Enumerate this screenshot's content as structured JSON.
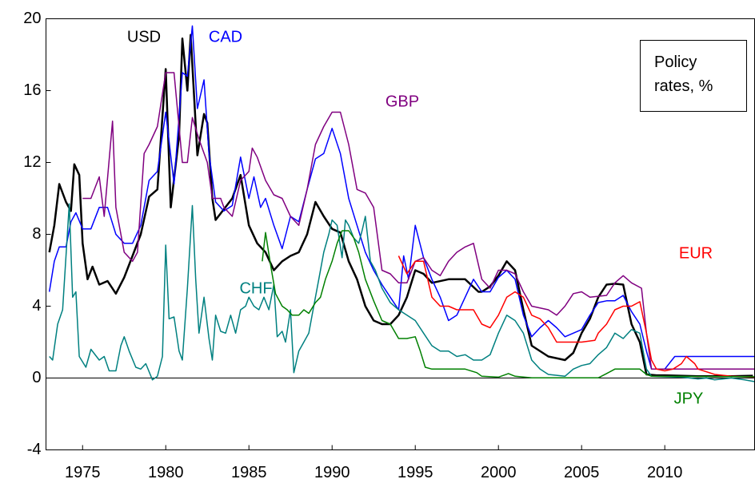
{
  "chart_data": {
    "type": "line",
    "annotation": "Policy rates, %",
    "xlim": [
      1972.8,
      2015.4
    ],
    "xticks": [
      1975,
      1980,
      1985,
      1990,
      1995,
      2000,
      2005,
      2010
    ],
    "ylim": [
      -4,
      20
    ],
    "yticks": [
      -4,
      0,
      4,
      8,
      12,
      16,
      20
    ],
    "grid": false,
    "zero_line": true,
    "series": [
      {
        "name": "USD",
        "color": "#000000",
        "x": [
          1973,
          1973.3,
          1973.6,
          1974,
          1974.3,
          1974.5,
          1974.8,
          1975,
          1975.3,
          1975.6,
          1976,
          1976.5,
          1977,
          1977.5,
          1978,
          1978.5,
          1979,
          1979.5,
          1980,
          1980.3,
          1980.8,
          1981,
          1981.3,
          1981.5,
          1981.9,
          1982.3,
          1982.5,
          1982.8,
          1983,
          1983.5,
          1984,
          1984.5,
          1985,
          1985.5,
          1986,
          1986.5,
          1987,
          1987.5,
          1988,
          1988.5,
          1989,
          1989.5,
          1990,
          1990.5,
          1991,
          1991.5,
          1992,
          1992.5,
          1993,
          1993.5,
          1994,
          1994.5,
          1995,
          1995.5,
          1996,
          1997,
          1998,
          1998.8,
          1999,
          1999.5,
          2000,
          2000.5,
          2001,
          2001.5,
          2002,
          2003,
          2004,
          2004.5,
          2005,
          2005.5,
          2006,
          2006.5,
          2007,
          2007.5,
          2008,
          2008.5,
          2008.9,
          2009.5,
          2010,
          2012,
          2014,
          2015.3
        ],
        "values": [
          7,
          8.5,
          10.8,
          9.8,
          9.3,
          11.9,
          11.3,
          7.5,
          5.5,
          6.2,
          5.2,
          5.4,
          4.7,
          5.6,
          6.8,
          8,
          10.1,
          10.5,
          17.2,
          9.5,
          13.5,
          18.9,
          16,
          19.1,
          12.4,
          14.7,
          14.2,
          10,
          8.8,
          9.4,
          10,
          11.3,
          8.5,
          7.5,
          7,
          6,
          6.5,
          6.8,
          7,
          8,
          9.8,
          9,
          8.3,
          8.1,
          6.5,
          5.5,
          4,
          3.2,
          3,
          3,
          3.5,
          4.5,
          6,
          5.8,
          5.3,
          5.5,
          5.5,
          4.8,
          4.8,
          5.1,
          5.7,
          6.5,
          6,
          3.8,
          1.8,
          1.2,
          1,
          1.4,
          2.5,
          3.3,
          4.5,
          5.2,
          5.25,
          5.2,
          3,
          2,
          0.2,
          0.15,
          0.15,
          0.1,
          0.1,
          0.13
        ]
      },
      {
        "name": "CAD",
        "color": "#0000ff",
        "x": [
          1973,
          1973.3,
          1973.6,
          1974,
          1974.3,
          1974.6,
          1975,
          1975.5,
          1976,
          1976.5,
          1977,
          1977.5,
          1978,
          1978.5,
          1979,
          1979.5,
          1980,
          1980.5,
          1981,
          1981.3,
          1981.6,
          1981.9,
          1982.3,
          1982.6,
          1983,
          1983.5,
          1984,
          1984.5,
          1985,
          1985.3,
          1985.7,
          1986,
          1986.5,
          1987,
          1987.5,
          1988,
          1988.5,
          1989,
          1989.5,
          1990,
          1990.5,
          1991,
          1991.5,
          1992,
          1992.5,
          1993,
          1993.5,
          1994,
          1994.3,
          1994.6,
          1995,
          1995.5,
          1996,
          1996.5,
          1997,
          1997.5,
          1998,
          1998.5,
          1999,
          1999.5,
          2000,
          2000.5,
          2001,
          2001.5,
          2002,
          2002.5,
          2003,
          2003.5,
          2004,
          2004.5,
          2005,
          2005.5,
          2006,
          2006.5,
          2007,
          2007.5,
          2008,
          2008.5,
          2008.9,
          2009.2,
          2010,
          2010.6,
          2015.4
        ],
        "values": [
          4.8,
          6.5,
          7.3,
          7.3,
          8.7,
          9.2,
          8.3,
          8.3,
          9.5,
          9.5,
          8,
          7.5,
          7.5,
          8.5,
          11,
          11.5,
          14.8,
          10.8,
          17,
          16.8,
          19.6,
          15,
          16.6,
          12.5,
          9.8,
          9.3,
          9.6,
          12.3,
          10,
          11.2,
          9.5,
          10,
          8.5,
          7.2,
          9,
          8.7,
          10.5,
          12.2,
          12.5,
          13.9,
          12.5,
          10,
          8.5,
          7,
          6,
          5.2,
          4.5,
          3.8,
          6.8,
          5.5,
          8.5,
          6.7,
          5.5,
          4.5,
          3.2,
          3.5,
          4.5,
          5.5,
          4.8,
          4.8,
          5.6,
          6,
          5.5,
          3.5,
          2.3,
          2.8,
          3.2,
          2.8,
          2.3,
          2.5,
          2.7,
          3.5,
          4.2,
          4.3,
          4.3,
          4.6,
          3.7,
          3,
          1.5,
          0.5,
          0.5,
          1.2,
          1.2
        ]
      },
      {
        "name": "GBP",
        "color": "#800080",
        "x": [
          1975,
          1975.5,
          1976,
          1976.3,
          1976.8,
          1977,
          1977.5,
          1978,
          1978.3,
          1978.7,
          1979,
          1979.5,
          1980,
          1980.5,
          1981,
          1981.3,
          1981.6,
          1982,
          1982.5,
          1982.8,
          1983.3,
          1983.5,
          1984,
          1984.5,
          1985,
          1985.2,
          1985.5,
          1986,
          1986.5,
          1987,
          1987.5,
          1988,
          1988.5,
          1989,
          1989.5,
          1990,
          1990.5,
          1991,
          1991.5,
          1992,
          1992.5,
          1993,
          1993.5,
          1994,
          1994.5,
          1995,
          1995.5,
          1996,
          1996.5,
          1997,
          1997.5,
          1998,
          1998.5,
          1999,
          1999.5,
          2000,
          2000.5,
          2001,
          2001.5,
          2002,
          2003,
          2003.5,
          2004,
          2004.5,
          2005,
          2005.5,
          2006.5,
          2007,
          2007.5,
          2008,
          2008.6,
          2008.9,
          2009.2,
          2015.4
        ],
        "values": [
          10,
          10,
          11.2,
          9,
          14.3,
          9.5,
          7,
          6.5,
          7,
          12.5,
          13,
          14,
          17,
          17,
          12,
          12,
          14.5,
          13.3,
          12,
          10,
          10,
          9.5,
          9,
          11,
          11.5,
          12.8,
          12.3,
          11,
          10.2,
          10,
          9,
          8.5,
          10.5,
          13,
          14,
          14.8,
          14.8,
          13,
          10.5,
          10.3,
          9.5,
          6,
          5.8,
          5.3,
          5.3,
          6.5,
          6.7,
          6,
          5.7,
          6.5,
          7,
          7.3,
          7.5,
          5.5,
          5,
          6,
          6,
          5.8,
          4.8,
          4,
          3.8,
          3.5,
          4,
          4.7,
          4.8,
          4.5,
          4.6,
          5.3,
          5.7,
          5.3,
          5,
          2.5,
          0.5,
          0.5
        ]
      },
      {
        "name": "EUR",
        "color": "#ff0000",
        "x": [
          1994,
          1994.5,
          1995,
          1995.5,
          1996,
          1996.5,
          1997,
          1997.5,
          1998,
          1998.5,
          1999,
          1999.5,
          2000,
          2000.5,
          2001,
          2001.5,
          2002,
          2002.5,
          2003,
          2003.5,
          2004,
          2005,
          2005.8,
          2006,
          2006.5,
          2007,
          2007.5,
          2008,
          2008.5,
          2008.9,
          2009.2,
          2009.5,
          2010,
          2010.5,
          2011,
          2011.3,
          2011.8,
          2012,
          2013,
          2014,
          2015.4
        ],
        "values": [
          6.8,
          5.8,
          6.5,
          6.5,
          4.5,
          4,
          4,
          3.8,
          3.8,
          3.8,
          3,
          2.8,
          3.5,
          4.5,
          4.8,
          4.5,
          3.5,
          3.3,
          2.8,
          2,
          2,
          2,
          2.1,
          2.5,
          3,
          3.8,
          4,
          4,
          4.25,
          2.5,
          1,
          0.5,
          0.4,
          0.5,
          0.8,
          1.2,
          0.8,
          0.5,
          0.2,
          0.1,
          0.05
        ]
      },
      {
        "name": "CHF",
        "color": "#008080",
        "x": [
          1973,
          1973.2,
          1973.5,
          1973.8,
          1974.2,
          1974.4,
          1974.6,
          1974.8,
          1975.2,
          1975.5,
          1976,
          1976.3,
          1976.6,
          1977,
          1977.3,
          1977.5,
          1977.8,
          1978.2,
          1978.5,
          1978.8,
          1979.2,
          1979.5,
          1979.8,
          1980,
          1980.2,
          1980.5,
          1980.8,
          1981,
          1981.3,
          1981.6,
          1981.8,
          1982,
          1982.3,
          1982.6,
          1982.8,
          1983,
          1983.3,
          1983.6,
          1983.9,
          1984.2,
          1984.5,
          1984.8,
          1985,
          1985.3,
          1985.6,
          1985.9,
          1986.2,
          1986.5,
          1986.7,
          1987,
          1987.2,
          1987.5,
          1987.7,
          1988,
          1988.3,
          1988.6,
          1988.9,
          1989.2,
          1989.5,
          1989.8,
          1990,
          1990.3,
          1990.6,
          1990.8,
          1991,
          1991.3,
          1991.6,
          1991.8,
          1992,
          1992.3,
          1992.6,
          1993,
          1993.5,
          1994,
          1994.5,
          1995,
          1995.5,
          1996,
          1996.5,
          1997,
          1997.5,
          1998,
          1998.5,
          1999,
          1999.5,
          2000,
          2000.5,
          2001,
          2001.5,
          2002,
          2002.5,
          2003,
          2004,
          2004.5,
          2005,
          2005.5,
          2006,
          2006.5,
          2007,
          2007.5,
          2008,
          2008.5,
          2008.9,
          2009.2,
          2011,
          2012,
          2012.5,
          2013,
          2014,
          2014.8,
          2015.4
        ],
        "values": [
          1.2,
          1,
          3,
          3.8,
          9.7,
          4.5,
          4.8,
          1.2,
          0.6,
          1.6,
          1,
          1.2,
          0.4,
          0.4,
          1.8,
          2.3,
          1.5,
          0.6,
          0.5,
          0.8,
          -0.1,
          0.1,
          1.2,
          7.4,
          3.3,
          3.4,
          1.5,
          1,
          5,
          9.6,
          5.5,
          2.5,
          4.5,
          2.2,
          1,
          3.5,
          2.6,
          2.5,
          3.5,
          2.5,
          3.8,
          4,
          4.5,
          4,
          3.8,
          4.5,
          3.8,
          5.2,
          2.3,
          2.6,
          2,
          3.8,
          0.3,
          1.5,
          2,
          2.5,
          4,
          5.5,
          7,
          8,
          8.8,
          8.5,
          6.7,
          8.8,
          8.5,
          7.8,
          7.5,
          8.2,
          9,
          6.5,
          6,
          5,
          4.2,
          3.8,
          3.5,
          3.2,
          2.5,
          1.8,
          1.5,
          1.5,
          1.2,
          1.3,
          1,
          1,
          1.3,
          2.5,
          3.5,
          3.2,
          2.5,
          1,
          0.5,
          0.2,
          0.1,
          0.5,
          0.7,
          0.8,
          1.3,
          1.7,
          2.5,
          2.2,
          2.7,
          2.5,
          0.5,
          0.1,
          0.05,
          -0.05,
          0,
          -0.1,
          0,
          -0.1,
          -0.2
        ]
      },
      {
        "name": "JPY",
        "color": "#008000",
        "x": [
          1985.8,
          1986,
          1986.3,
          1986.6,
          1987,
          1987.3,
          1987.6,
          1988,
          1988.3,
          1988.6,
          1989,
          1989.3,
          1989.6,
          1990,
          1990.3,
          1990.6,
          1991,
          1991.3,
          1991.6,
          1992,
          1992.5,
          1993,
          1993.5,
          1994,
          1994.5,
          1995,
          1995.3,
          1995.6,
          1996,
          1997,
          1998,
          1998.7,
          1999,
          2000,
          2000.6,
          2001,
          2002,
          2006,
          2006.5,
          2007,
          2008.5,
          2008.9,
          2009.2,
          2015.4
        ],
        "values": [
          6.5,
          8.1,
          6.3,
          4.7,
          4,
          3.8,
          3.5,
          3.5,
          3.8,
          3.6,
          4.2,
          4.5,
          5.5,
          6.5,
          7.5,
          8.2,
          8.2,
          7.8,
          7,
          5.5,
          4.3,
          3.2,
          3,
          2.2,
          2.2,
          2.3,
          1.5,
          0.6,
          0.5,
          0.5,
          0.5,
          0.3,
          0.1,
          0.05,
          0.25,
          0.1,
          0.01,
          0.01,
          0.25,
          0.5,
          0.5,
          0.2,
          0.1,
          0.07
        ]
      }
    ]
  }
}
